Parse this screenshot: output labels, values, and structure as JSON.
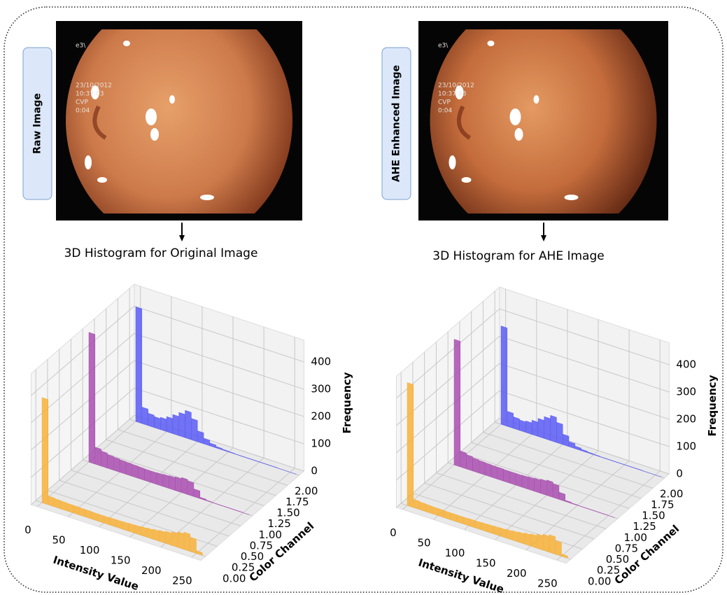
{
  "panels": [
    {
      "label": "Raw Image",
      "image_overlay": [
        "e3\\",
        "23/10/2012",
        "10:37:03",
        "CVP",
        "0:04"
      ],
      "caption": "3D Histogram for Original Image",
      "histogram": {
        "type": "bar3d",
        "x_label": "Intensity Value",
        "y_label": "Color Channel",
        "z_label": "Frequency",
        "xlim": [
          -10,
          265
        ],
        "ylim": [
          -0.1,
          2.1
        ],
        "zlim": [
          0,
          480
        ],
        "xticks": [
          0,
          50,
          100,
          150,
          200,
          250
        ],
        "yticks": [
          {
            "value": 0,
            "label": "0.00"
          },
          {
            "value": 0.25,
            "label": "0.25"
          },
          {
            "value": 0.5,
            "label": "0.50"
          },
          {
            "value": 0.75,
            "label": "0.75"
          },
          {
            "value": 1,
            "label": "1.00"
          },
          {
            "value": 1.25,
            "label": "1.25"
          },
          {
            "value": 1.5,
            "label": "1.50"
          },
          {
            "value": 1.75,
            "label": "1.75"
          },
          {
            "value": 2,
            "label": "2.00"
          }
        ],
        "zticks": [
          0,
          100,
          200,
          300,
          400
        ],
        "bin_width": 10,
        "x": [
          0,
          10,
          20,
          30,
          40,
          50,
          60,
          70,
          80,
          90,
          100,
          110,
          120,
          130,
          140,
          150,
          160,
          170,
          180,
          190,
          200,
          210,
          220,
          230,
          240,
          250
        ],
        "series": [
          {
            "color": "#f7b13a",
            "y": 0,
            "values": [
              385,
              32,
              30,
              29,
              28,
              28,
              27,
              27,
              26,
              26,
              26,
              27,
              27,
              28,
              29,
              30,
              32,
              34,
              37,
              40,
              44,
              50,
              57,
              63,
              52,
              10
            ]
          },
          {
            "color": "#a94fb0",
            "y": 1,
            "values": [
              475,
              62,
              55,
              50,
              48,
              46,
              45,
              44,
              43,
              42,
              42,
              43,
              45,
              47,
              50,
              55,
              50,
              28,
              5,
              2,
              1,
              1,
              1,
              1,
              1,
              0
            ]
          },
          {
            "color": "#5b5cf5",
            "y": 2,
            "values": [
              420,
              60,
              45,
              40,
              45,
              55,
              70,
              85,
              100,
              78,
              40,
              20,
              10,
              5,
              3,
              2,
              1,
              1,
              1,
              1,
              1,
              1,
              1,
              0,
              0,
              0
            ]
          }
        ]
      }
    },
    {
      "label": "AHE Enhanced Image",
      "image_overlay": [
        "e3\\",
        "23/10/2012",
        "10:37:03",
        "CVP",
        "0:04"
      ],
      "caption": "3D Histogram for AHE Image",
      "histogram": {
        "type": "bar3d",
        "x_label": "Intensity Value",
        "y_label": "Color Channel",
        "z_label": "Frequency",
        "xlim": [
          -10,
          265
        ],
        "ylim": [
          -0.1,
          2.1
        ],
        "zlim": [
          0,
          480
        ],
        "xticks": [
          0,
          50,
          100,
          150,
          200,
          250
        ],
        "yticks": [
          {
            "value": 0,
            "label": "0.00"
          },
          {
            "value": 0.25,
            "label": "0.25"
          },
          {
            "value": 0.5,
            "label": "0.50"
          },
          {
            "value": 0.75,
            "label": "0.75"
          },
          {
            "value": 1,
            "label": "1.00"
          },
          {
            "value": 1.25,
            "label": "1.25"
          },
          {
            "value": 1.5,
            "label": "1.50"
          },
          {
            "value": 1.75,
            "label": "1.75"
          },
          {
            "value": 2,
            "label": "2.00"
          }
        ],
        "zticks": [
          0,
          100,
          200,
          300,
          400
        ],
        "bin_width": 10,
        "x": [
          0,
          10,
          20,
          30,
          40,
          50,
          60,
          70,
          80,
          90,
          100,
          110,
          120,
          130,
          140,
          150,
          160,
          170,
          180,
          190,
          200,
          210,
          220,
          230,
          240,
          250
        ],
        "series": [
          {
            "color": "#f7b13a",
            "y": 0,
            "values": [
              450,
              30,
              28,
              27,
              26,
              26,
              25,
              25,
              25,
              25,
              26,
              26,
              27,
              28,
              29,
              30,
              32,
              34,
              37,
              41,
              45,
              52,
              58,
              64,
              50,
              8
            ]
          },
          {
            "color": "#a94fb0",
            "y": 1,
            "values": [
              460,
              58,
              52,
              48,
              46,
              45,
              44,
              44,
              43,
              43,
              43,
              44,
              46,
              48,
              52,
              56,
              50,
              26,
              4,
              2,
              1,
              1,
              1,
              1,
              1,
              0
            ]
          },
          {
            "color": "#5b5cf5",
            "y": 2,
            "values": [
              360,
              55,
              42,
              38,
              42,
              52,
              66,
              80,
              92,
              74,
              38,
              18,
              9,
              5,
              3,
              2,
              1,
              1,
              1,
              1,
              1,
              1,
              1,
              0,
              0,
              0
            ]
          }
        ]
      }
    }
  ]
}
